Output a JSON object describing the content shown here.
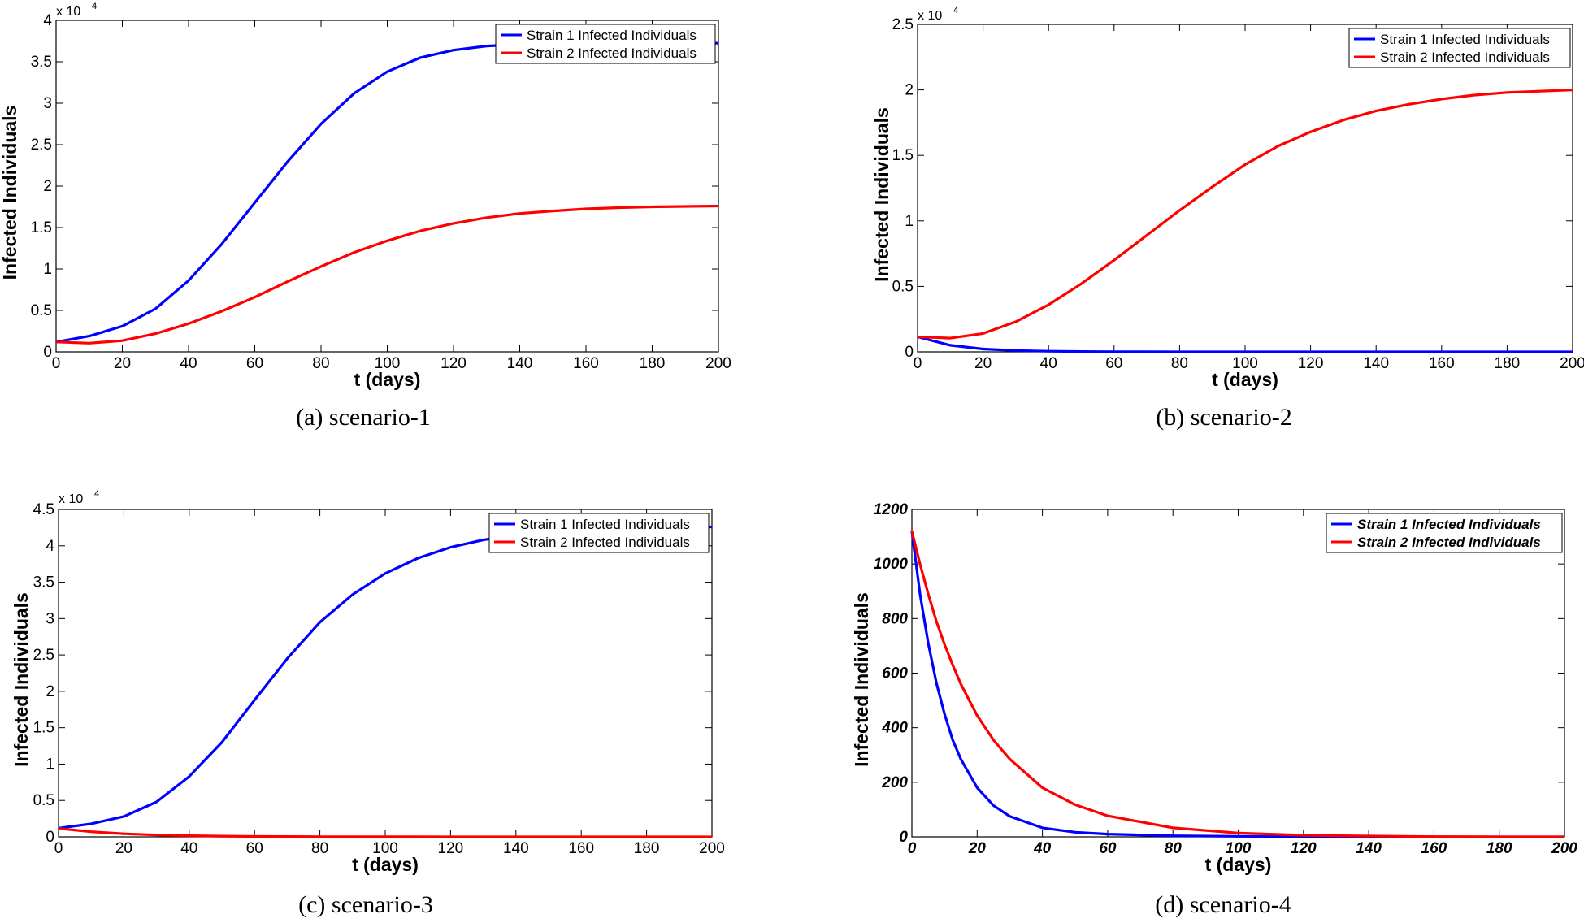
{
  "chart_data": [
    {
      "type": "line",
      "caption": "(a) scenario-1",
      "xlabel": "t (days)",
      "ylabel": "Infected Individuals",
      "xlim": [
        0,
        200
      ],
      "ylim": [
        0,
        40000
      ],
      "xticks": [
        "0",
        "20",
        "40",
        "60",
        "80",
        "100",
        "120",
        "140",
        "160",
        "180",
        "200"
      ],
      "yticks": [
        "0",
        "0.5",
        "1",
        "1.5",
        "2",
        "2.5",
        "3",
        "3.5",
        "4"
      ],
      "multiplier": "x 10",
      "multiplier_exp": "4",
      "legend": [
        "Strain 1 Infected Individuals",
        "Strain 2 Infected Individuals"
      ],
      "x": [
        0,
        10,
        20,
        30,
        40,
        50,
        60,
        70,
        80,
        90,
        100,
        110,
        120,
        130,
        140,
        150,
        160,
        170,
        180,
        190,
        200
      ],
      "series": [
        {
          "name": "Strain 1 Infected Individuals",
          "color": "#0000ff",
          "values": [
            1200,
            1900,
            3100,
            5200,
            8600,
            13000,
            18000,
            23000,
            27500,
            31200,
            33800,
            35500,
            36400,
            36900,
            37100,
            37200,
            37250,
            37250,
            37250,
            37250,
            37250
          ]
        },
        {
          "name": "Strain 2 Infected Individuals",
          "color": "#ff0000",
          "values": [
            1200,
            1050,
            1350,
            2200,
            3400,
            4900,
            6600,
            8500,
            10300,
            12000,
            13400,
            14600,
            15500,
            16200,
            16700,
            17000,
            17250,
            17400,
            17500,
            17550,
            17600
          ]
        }
      ]
    },
    {
      "type": "line",
      "caption": "(b) scenario-2",
      "xlabel": "t (days)",
      "ylabel": "Infected Individuals",
      "xlim": [
        0,
        200
      ],
      "ylim": [
        0,
        25000
      ],
      "xticks": [
        "0",
        "20",
        "40",
        "60",
        "80",
        "100",
        "120",
        "140",
        "160",
        "180",
        "200"
      ],
      "yticks": [
        "0",
        "0.5",
        "1",
        "1.5",
        "2",
        "2.5"
      ],
      "multiplier": "x 10",
      "multiplier_exp": "4",
      "legend": [
        "Strain 1 Infected Individuals",
        "Strain 2 Infected Individuals"
      ],
      "x": [
        0,
        10,
        20,
        30,
        40,
        50,
        60,
        70,
        80,
        90,
        100,
        110,
        120,
        130,
        140,
        150,
        160,
        170,
        180,
        190,
        200
      ],
      "series": [
        {
          "name": "Strain 1 Infected Individuals",
          "color": "#0000ff",
          "values": [
            1150,
            500,
            220,
            100,
            50,
            25,
            12,
            6,
            3,
            2,
            1,
            0,
            0,
            0,
            0,
            0,
            0,
            0,
            0,
            0,
            0
          ]
        },
        {
          "name": "Strain 2 Infected Individuals",
          "color": "#ff0000",
          "values": [
            1150,
            1050,
            1400,
            2300,
            3600,
            5200,
            7000,
            8900,
            10800,
            12600,
            14300,
            15700,
            16800,
            17700,
            18400,
            18900,
            19300,
            19600,
            19800,
            19900,
            20000
          ]
        }
      ]
    },
    {
      "type": "line",
      "caption": "(c) scenario-3",
      "xlabel": "t (days)",
      "ylabel": "Infected Individuals",
      "xlim": [
        0,
        200
      ],
      "ylim": [
        0,
        45000
      ],
      "xticks": [
        "0",
        "20",
        "40",
        "60",
        "80",
        "100",
        "120",
        "140",
        "160",
        "180",
        "200"
      ],
      "yticks": [
        "0",
        "0.5",
        "1",
        "1.5",
        "2",
        "2.5",
        "3",
        "3.5",
        "4",
        "4.5"
      ],
      "multiplier": "x 10",
      "multiplier_exp": "4",
      "legend": [
        "Strain 1 Infected Individuals",
        "Strain 2 Infected Individuals"
      ],
      "x": [
        0,
        10,
        20,
        30,
        40,
        50,
        60,
        70,
        80,
        90,
        100,
        110,
        120,
        130,
        140,
        150,
        160,
        170,
        180,
        190,
        200
      ],
      "series": [
        {
          "name": "Strain 1 Infected Individuals",
          "color": "#0000ff",
          "values": [
            1200,
            1800,
            2800,
            4800,
            8300,
            13000,
            18800,
            24500,
            29500,
            33300,
            36200,
            38300,
            39800,
            40800,
            41500,
            41900,
            42200,
            42400,
            42500,
            42550,
            42600
          ]
        },
        {
          "name": "Strain 2 Infected Individuals",
          "color": "#ff0000",
          "values": [
            1150,
            700,
            420,
            260,
            160,
            100,
            60,
            40,
            25,
            15,
            10,
            6,
            4,
            2,
            1,
            1,
            0,
            0,
            0,
            0,
            0
          ]
        }
      ]
    },
    {
      "type": "line",
      "caption": "(d) scenario-4",
      "xlabel": "t (days)",
      "ylabel": "Infected Individuals",
      "xlim": [
        0,
        200
      ],
      "ylim": [
        0,
        1200
      ],
      "xticks": [
        "0",
        "20",
        "40",
        "60",
        "80",
        "100",
        "120",
        "140",
        "160",
        "180",
        "200"
      ],
      "yticks": [
        "0",
        "200",
        "400",
        "600",
        "800",
        "1000",
        "1200"
      ],
      "multiplier": "",
      "multiplier_exp": "",
      "legend": [
        "Strain 1 Infected Individuals",
        "Strain 2 Infected Individuals"
      ],
      "x": [
        0,
        2.5,
        5,
        7.5,
        10,
        12.5,
        15,
        20,
        25,
        30,
        40,
        50,
        60,
        80,
        100,
        120,
        140,
        160,
        180,
        200
      ],
      "series": [
        {
          "name": "Strain 1 Infected Individuals",
          "color": "#0000ff",
          "values": [
            1120,
            890,
            710,
            565,
            450,
            355,
            285,
            180,
            115,
            75,
            33,
            17,
            10,
            4,
            2,
            1,
            0,
            0,
            0,
            0
          ]
        },
        {
          "name": "Strain 2 Infected Individuals",
          "color": "#ff0000",
          "values": [
            1120,
            1000,
            890,
            790,
            705,
            630,
            560,
            445,
            355,
            285,
            180,
            118,
            77,
            33,
            14,
            6,
            3,
            1,
            0,
            0
          ]
        }
      ]
    }
  ]
}
